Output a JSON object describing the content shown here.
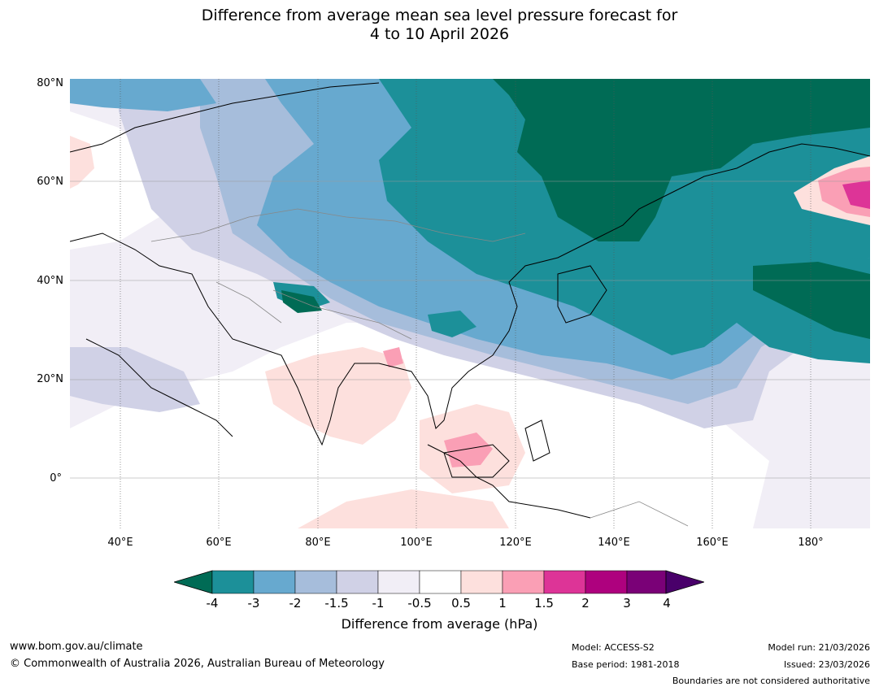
{
  "title": {
    "line1": "Difference from average mean sea level pressure forecast for",
    "line2": "4 to 10 April 2026"
  },
  "map": {
    "lat_labels": [
      "80°N",
      "60°N",
      "40°N",
      "20°N",
      "0°"
    ],
    "lon_labels": [
      "40°E",
      "60°E",
      "80°E",
      "100°E",
      "120°E",
      "140°E",
      "160°E",
      "180°"
    ],
    "colors": {
      "c_m4": "#006b55",
      "c_m3": "#1c9099",
      "c_m2": "#67a9cf",
      "c_m15": "#a6bddb",
      "c_m1": "#d0d1e6",
      "c_m05": "#f1eef6",
      "c_0": "#ffffff",
      "c_p05": "#fde0dd",
      "c_p1": "#fa9fb5",
      "c_p15": "#dd3497"
    }
  },
  "colorbar": {
    "ticks": [
      "-4",
      "-3",
      "-2",
      "-1.5",
      "-1",
      "-0.5",
      "0.5",
      "1",
      "1.5",
      "2",
      "3",
      "4"
    ],
    "colors": [
      "#006b55",
      "#1c9099",
      "#67a9cf",
      "#a6bddb",
      "#d0d1e6",
      "#f1eef6",
      "#ffffff",
      "#fde0dd",
      "#fa9fb5",
      "#dd3497",
      "#ae017e",
      "#7a0177",
      "#49006a"
    ],
    "label": "Difference from average (hPa)"
  },
  "footer": {
    "website": "www.bom.gov.au/climate",
    "copyright": "© Commonwealth of Australia 2026, Australian Bureau of Meteorology",
    "model": "Model: ACCESS-S2",
    "base_period": "Base period: 1981-2018",
    "model_run": "Model run: 21/03/2026",
    "issued": "Issued: 23/03/2026",
    "boundaries_note": "Boundaries are not considered authoritative"
  }
}
